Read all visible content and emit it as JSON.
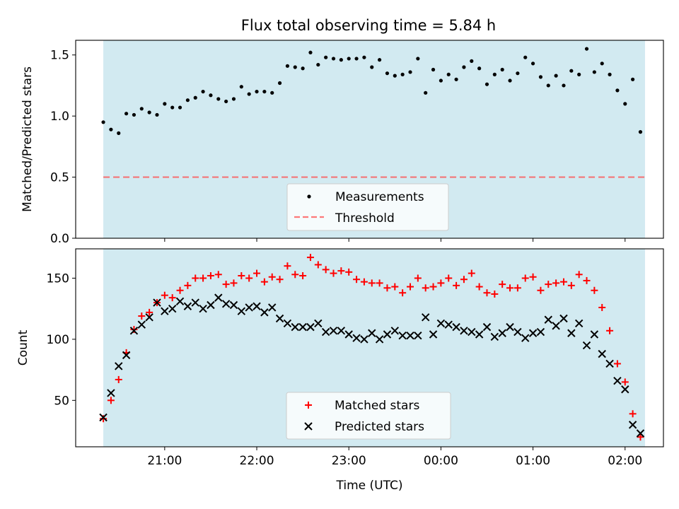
{
  "title": "Flux total observing time = 5.84 h",
  "colors": {
    "shade": "#add8e6",
    "threshold": "#ff4d4d",
    "matched": "#ff0000",
    "predicted": "#000000",
    "measurements": "#000000"
  },
  "chart_data": [
    {
      "type": "scatter",
      "panel": "top",
      "ylabel": "Matched/Predicted stars",
      "xlabel": "",
      "ylim": [
        0,
        1.62
      ],
      "yticks": [
        "0.0",
        "0.5",
        "1.0",
        "1.5"
      ],
      "ytick_values": [
        0,
        0.5,
        1.0,
        1.5
      ],
      "shaded_span": [
        "20:20",
        "02:13"
      ],
      "threshold": 0.5,
      "legend": {
        "placement": "lower-center",
        "entries": [
          "Measurements",
          "Threshold"
        ]
      },
      "series": [
        {
          "name": "Measurements",
          "x": [
            "20:20",
            "20:25",
            "20:30",
            "20:35",
            "20:40",
            "20:45",
            "20:50",
            "20:55",
            "21:00",
            "21:05",
            "21:10",
            "21:15",
            "21:20",
            "21:25",
            "21:30",
            "21:35",
            "21:40",
            "21:45",
            "21:50",
            "21:55",
            "22:00",
            "22:05",
            "22:10",
            "22:15",
            "22:20",
            "22:25",
            "22:30",
            "22:35",
            "22:40",
            "22:45",
            "22:50",
            "22:55",
            "23:00",
            "23:05",
            "23:10",
            "23:15",
            "23:20",
            "23:25",
            "23:30",
            "23:35",
            "23:40",
            "23:45",
            "23:50",
            "23:55",
            "00:00",
            "00:05",
            "00:10",
            "00:15",
            "00:20",
            "00:25",
            "00:30",
            "00:35",
            "00:40",
            "00:45",
            "00:50",
            "00:55",
            "01:00",
            "01:05",
            "01:10",
            "01:15",
            "01:20",
            "01:25",
            "01:30",
            "01:35",
            "01:40",
            "01:45",
            "01:50",
            "01:55",
            "02:00",
            "02:05",
            "02:10"
          ],
          "values": [
            0.95,
            0.89,
            0.86,
            1.02,
            1.01,
            1.06,
            1.03,
            1.01,
            1.1,
            1.07,
            1.07,
            1.13,
            1.15,
            1.2,
            1.17,
            1.14,
            1.12,
            1.14,
            1.24,
            1.18,
            1.2,
            1.2,
            1.19,
            1.27,
            1.41,
            1.4,
            1.39,
            1.52,
            1.42,
            1.48,
            1.47,
            1.46,
            1.47,
            1.47,
            1.48,
            1.4,
            1.46,
            1.35,
            1.33,
            1.34,
            1.36,
            1.47,
            1.19,
            1.38,
            1.29,
            1.34,
            1.3,
            1.4,
            1.45,
            1.39,
            1.26,
            1.34,
            1.38,
            1.29,
            1.35,
            1.48,
            1.43,
            1.32,
            1.25,
            1.33,
            1.25,
            1.37,
            1.34,
            1.55,
            1.36,
            1.43,
            1.34,
            1.21,
            1.1,
            1.3,
            0.87
          ]
        },
        {
          "name": "Threshold",
          "values": [
            0.5
          ]
        }
      ]
    },
    {
      "type": "scatter",
      "panel": "bottom",
      "ylabel": "Count",
      "xlabel": "Time (UTC)",
      "ylim": [
        12,
        174
      ],
      "yticks": [
        "50",
        "100",
        "150"
      ],
      "ytick_values": [
        50,
        100,
        150
      ],
      "xlim": [
        "20:02",
        "02:25"
      ],
      "xticks": [
        "21:00",
        "22:00",
        "23:00",
        "00:00",
        "01:00",
        "02:00"
      ],
      "shaded_span": [
        "20:20",
        "02:13"
      ],
      "legend": {
        "placement": "lower-center",
        "entries": [
          "Matched stars",
          "Predicted stars"
        ]
      },
      "series": [
        {
          "name": "Matched stars",
          "x": [
            "20:20",
            "20:25",
            "20:30",
            "20:35",
            "20:40",
            "20:45",
            "20:50",
            "20:55",
            "21:00",
            "21:05",
            "21:10",
            "21:15",
            "21:20",
            "21:25",
            "21:30",
            "21:35",
            "21:40",
            "21:45",
            "21:50",
            "21:55",
            "22:00",
            "22:05",
            "22:10",
            "22:15",
            "22:20",
            "22:25",
            "22:30",
            "22:35",
            "22:40",
            "22:45",
            "22:50",
            "22:55",
            "23:00",
            "23:05",
            "23:10",
            "23:15",
            "23:20",
            "23:25",
            "23:30",
            "23:35",
            "23:40",
            "23:45",
            "23:50",
            "23:55",
            "00:00",
            "00:05",
            "00:10",
            "00:15",
            "00:20",
            "00:25",
            "00:30",
            "00:35",
            "00:40",
            "00:45",
            "00:50",
            "00:55",
            "01:00",
            "01:05",
            "01:10",
            "01:15",
            "01:20",
            "01:25",
            "01:30",
            "01:35",
            "01:40",
            "01:45",
            "01:50",
            "01:55",
            "02:00",
            "02:05",
            "02:10"
          ],
          "values": [
            35,
            50,
            67,
            89,
            108,
            119,
            122,
            130,
            136,
            134,
            140,
            144,
            150,
            150,
            152,
            153,
            145,
            146,
            152,
            150,
            154,
            147,
            151,
            149,
            160,
            153,
            152,
            167,
            161,
            157,
            154,
            156,
            155,
            149,
            147,
            146,
            146,
            142,
            143,
            138,
            143,
            150,
            142,
            143,
            146,
            150,
            144,
            149,
            154,
            143,
            138,
            137,
            145,
            142,
            142,
            150,
            151,
            140,
            145,
            146,
            147,
            144,
            153,
            148,
            140,
            126,
            107,
            80,
            65,
            39,
            20
          ]
        },
        {
          "name": "Predicted stars",
          "x": [
            "20:20",
            "20:25",
            "20:30",
            "20:35",
            "20:40",
            "20:45",
            "20:50",
            "20:55",
            "21:00",
            "21:05",
            "21:10",
            "21:15",
            "21:20",
            "21:25",
            "21:30",
            "21:35",
            "21:40",
            "21:45",
            "21:50",
            "21:55",
            "22:00",
            "22:05",
            "22:10",
            "22:15",
            "22:20",
            "22:25",
            "22:30",
            "22:35",
            "22:40",
            "22:45",
            "22:50",
            "22:55",
            "23:00",
            "23:05",
            "23:10",
            "23:15",
            "23:20",
            "23:25",
            "23:30",
            "23:35",
            "23:40",
            "23:45",
            "23:50",
            "23:55",
            "00:00",
            "00:05",
            "00:10",
            "00:15",
            "00:20",
            "00:25",
            "00:30",
            "00:35",
            "00:40",
            "00:45",
            "00:50",
            "00:55",
            "01:00",
            "01:05",
            "01:10",
            "01:15",
            "01:20",
            "01:25",
            "01:30",
            "01:35",
            "01:40",
            "01:45",
            "01:50",
            "01:55",
            "02:00",
            "02:05",
            "02:10"
          ],
          "values": [
            36,
            56,
            78,
            87,
            107,
            112,
            118,
            130,
            123,
            125,
            131,
            127,
            130,
            125,
            128,
            134,
            129,
            128,
            123,
            126,
            127,
            122,
            126,
            117,
            113,
            110,
            110,
            110,
            113,
            106,
            107,
            107,
            104,
            101,
            100,
            105,
            100,
            104,
            107,
            103,
            103,
            103,
            118,
            104,
            113,
            112,
            110,
            107,
            106,
            104,
            110,
            102,
            105,
            110,
            106,
            101,
            105,
            106,
            116,
            111,
            117,
            105,
            113,
            95,
            104,
            88,
            80,
            66,
            59,
            30,
            23
          ]
        }
      ]
    }
  ]
}
